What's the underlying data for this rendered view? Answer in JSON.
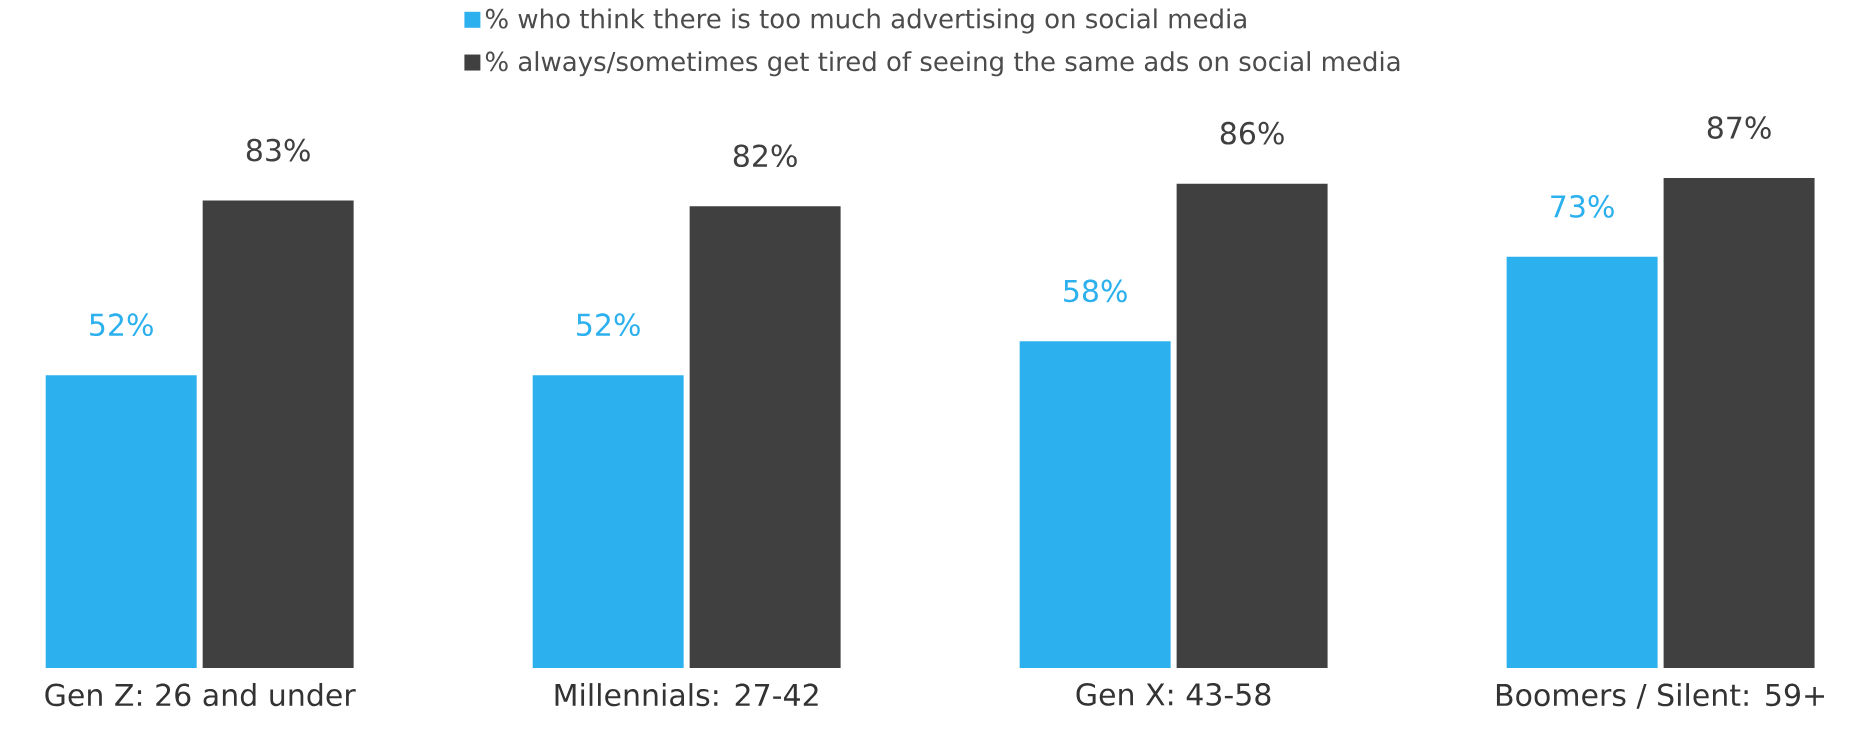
{
  "chart_data": {
    "type": "bar",
    "categories": [
      "Gen Z: 26 and under",
      "Millennials: 27-42",
      "Gen X: 43-58",
      "Boomers / Silent: 59+"
    ],
    "series": [
      {
        "name": "% who think there is too much advertising on social media",
        "color": "#2cb0ee",
        "values": [
          52,
          52,
          58,
          73
        ],
        "value_labels": [
          "52%",
          "52%",
          "58%",
          "73%"
        ]
      },
      {
        "name": "% always/sometimes get tired of seeing the same ads on social media",
        "color": "#404040",
        "values": [
          83,
          82,
          86,
          87
        ],
        "value_labels": [
          "83%",
          "82%",
          "86%",
          "87%"
        ]
      }
    ],
    "legend": "top"
  }
}
